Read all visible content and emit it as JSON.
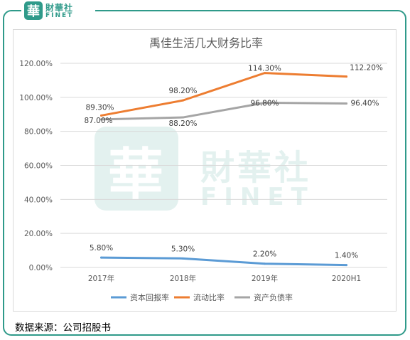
{
  "logo": {
    "seal_char": "華",
    "name_cn": "財華社",
    "name_en": "FINET"
  },
  "watermark": {
    "seal_char": "華",
    "name_cn": "財華社",
    "name_en": "FINET"
  },
  "source": "数据来源：公司招股书",
  "colors": {
    "frame": "#2f9a8a",
    "roa": "#5b9bd5",
    "current": "#ed7d31",
    "debt": "#a5a5a5"
  },
  "chart_data": {
    "type": "line",
    "title": "禹佳生活几大财务比率",
    "categories": [
      "2017年",
      "2018年",
      "2019年",
      "2020H1"
    ],
    "y_ticks": [
      "0.00%",
      "20.00%",
      "40.00%",
      "60.00%",
      "80.00%",
      "100.00%",
      "120.00%"
    ],
    "ylim": [
      0,
      120
    ],
    "grid": true,
    "legend_position": "bottom",
    "series": [
      {
        "name": "资本回报率",
        "values": [
          5.8,
          5.3,
          2.2,
          1.4
        ],
        "labels": [
          "5.80%",
          "5.30%",
          "2.20%",
          "1.40%"
        ],
        "color": "#5b9bd5"
      },
      {
        "name": "流动比率",
        "values": [
          89.3,
          98.2,
          114.3,
          112.2
        ],
        "labels": [
          "89.30%",
          "98.20%",
          "114.30%",
          "112.20%"
        ],
        "color": "#ed7d31"
      },
      {
        "name": "资产负债率",
        "values": [
          87.0,
          88.2,
          96.8,
          96.4
        ],
        "labels": [
          "87.00%",
          "88.20%",
          "96.80%",
          "96.40%"
        ],
        "color": "#a5a5a5"
      }
    ]
  }
}
